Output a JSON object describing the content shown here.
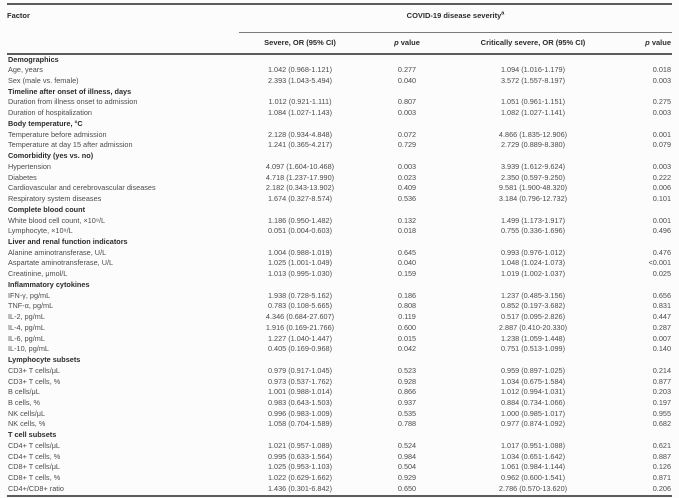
{
  "table": {
    "factor_header": "Factor",
    "span_header": "COVID-19 disease severity",
    "span_header_sup": "a",
    "subheaders": {
      "severe": "Severe, OR (95% CI)",
      "p1": {
        "italic": "p",
        "rest": " value"
      },
      "critical": "Critically severe, OR (95% CI)",
      "p2": {
        "italic": "p",
        "rest": " value"
      }
    },
    "rows": [
      {
        "type": "section",
        "label": "Demographics"
      },
      {
        "type": "data",
        "label": "Age, years",
        "severe_or": "1.042 (0.968-1.121)",
        "severe_p": "0.277",
        "critical_or": "1.094 (1.016-1.179)",
        "critical_p": "0.018"
      },
      {
        "type": "data",
        "label": "Sex (male vs. female)",
        "severe_or": "2.393 (1.043-5.494)",
        "severe_p": "0.040",
        "critical_or": "3.572 (1.557-8.197)",
        "critical_p": "0.003"
      },
      {
        "type": "section",
        "label": "Timeline after onset of illness, days"
      },
      {
        "type": "data",
        "label": "Duration from illness onset to admission",
        "severe_or": "1.012 (0.921-1.111)",
        "severe_p": "0.807",
        "critical_or": "1.051 (0.961-1.151)",
        "critical_p": "0.275"
      },
      {
        "type": "data",
        "label": "Duration of hospitalization",
        "severe_or": "1.084 (1.027-1.143)",
        "severe_p": "0.003",
        "critical_or": "1.082 (1.027-1.141)",
        "critical_p": "0.003"
      },
      {
        "type": "section",
        "label": "Body temperature, °C"
      },
      {
        "type": "data",
        "label": "Temperature before admission",
        "severe_or": "2.128 (0.934-4.848)",
        "severe_p": "0.072",
        "critical_or": "4.866 (1.835-12.906)",
        "critical_p": "0.001"
      },
      {
        "type": "data",
        "label": "Temperature at day 15 after admission",
        "severe_or": "1.241 (0.365-4.217)",
        "severe_p": "0.729",
        "critical_or": "2.729 (0.889-8.380)",
        "critical_p": "0.079"
      },
      {
        "type": "section",
        "label": "Comorbidity (yes vs. no)"
      },
      {
        "type": "data",
        "label": "Hypertension",
        "severe_or": "4.097 (1.604-10.468)",
        "severe_p": "0.003",
        "critical_or": "3.939 (1.612-9.624)",
        "critical_p": "0.003"
      },
      {
        "type": "data",
        "label": "Diabetes",
        "severe_or": "4.718 (1.237-17.990)",
        "severe_p": "0.023",
        "critical_or": "2.350 (0.597-9.250)",
        "critical_p": "0.222"
      },
      {
        "type": "data",
        "label": "Cardiovascular and cerebrovascular diseases",
        "severe_or": "2.182 (0.343-13.902)",
        "severe_p": "0.409",
        "critical_or": "9.581 (1.900-48.320)",
        "critical_p": "0.006"
      },
      {
        "type": "data",
        "label": "Respiratory system diseases",
        "severe_or": "1.674 (0.327-8.574)",
        "severe_p": "0.536",
        "critical_or": "3.184 (0.796-12.732)",
        "critical_p": "0.101"
      },
      {
        "type": "section",
        "label": "Complete blood count"
      },
      {
        "type": "data",
        "label": "White blood cell count, ×10⁹/L",
        "severe_or": "1.186 (0.950-1.482)",
        "severe_p": "0.132",
        "critical_or": "1.499 (1.173-1.917)",
        "critical_p": "0.001"
      },
      {
        "type": "data",
        "label": "Lymphocyte, ×10⁹/L",
        "severe_or": "0.051 (0.004-0.603)",
        "severe_p": "0.018",
        "critical_or": "0.755 (0.336-1.696)",
        "critical_p": "0.496"
      },
      {
        "type": "section",
        "label": "Liver and renal function indicators"
      },
      {
        "type": "data",
        "label": "Alanine aminotransferase, U/L",
        "severe_or": "1.004 (0.988-1.019)",
        "severe_p": "0.645",
        "critical_or": "0.993 (0.976-1.012)",
        "critical_p": "0.476"
      },
      {
        "type": "data",
        "label": "Aspartate aminotransferase, U/L",
        "severe_or": "1.025 (1.001-1.049)",
        "severe_p": "0.040",
        "critical_or": "1.048 (1.024-1.073)",
        "critical_p": "<0.001"
      },
      {
        "type": "data",
        "label": "Creatinine, μmol/L",
        "severe_or": "1.013 (0.995-1.030)",
        "severe_p": "0.159",
        "critical_or": "1.019 (1.002-1.037)",
        "critical_p": "0.025"
      },
      {
        "type": "section",
        "label": "Inflammatory cytokines"
      },
      {
        "type": "data",
        "label": "IFN-γ, pg/mL",
        "severe_or": "1.938 (0.728-5.162)",
        "severe_p": "0.186",
        "critical_or": "1.237 (0.485-3.156)",
        "critical_p": "0.656"
      },
      {
        "type": "data",
        "label": "TNF-α, pg/mL",
        "severe_or": "0.783 (0.108-5.665)",
        "severe_p": "0.808",
        "critical_or": "0.852 (0.197-3.682)",
        "critical_p": "0.831"
      },
      {
        "type": "data",
        "label": "IL-2, pg/mL",
        "severe_or": "4.346 (0.684-27.607)",
        "severe_p": "0.119",
        "critical_or": "0.517 (0.095-2.826)",
        "critical_p": "0.447"
      },
      {
        "type": "data",
        "label": "IL-4, pg/mL",
        "severe_or": "1.916 (0.169-21.766)",
        "severe_p": "0.600",
        "critical_or": "2.887 (0.410-20.330)",
        "critical_p": "0.287"
      },
      {
        "type": "data",
        "label": "IL-6, pg/mL",
        "severe_or": "1.227 (1.040-1.447)",
        "severe_p": "0.015",
        "critical_or": "1.238 (1.059-1.448)",
        "critical_p": "0.007"
      },
      {
        "type": "data",
        "label": "IL-10, pg/mL",
        "severe_or": "0.405 (0.169-0.968)",
        "severe_p": "0.042",
        "critical_or": "0.751 (0.513-1.099)",
        "critical_p": "0.140"
      },
      {
        "type": "section",
        "label": "Lymphocyte subsets"
      },
      {
        "type": "data",
        "label": "CD3+ T cells/μL",
        "severe_or": "0.979 (0.917-1.045)",
        "severe_p": "0.523",
        "critical_or": "0.959 (0.897-1.025)",
        "critical_p": "0.214"
      },
      {
        "type": "data",
        "label": "CD3+ T cells, %",
        "severe_or": "0.973 (0.537-1.762)",
        "severe_p": "0.928",
        "critical_or": "1.034 (0.675-1.584)",
        "critical_p": "0.877"
      },
      {
        "type": "data",
        "label": "B cells/μL",
        "severe_or": "1.001 (0.988-1.014)",
        "severe_p": "0.866",
        "critical_or": "1.012 (0.994-1.031)",
        "critical_p": "0.203"
      },
      {
        "type": "data",
        "label": "B cells, %",
        "severe_or": "0.983 (0.643-1.503)",
        "severe_p": "0.937",
        "critical_or": "0.884 (0.734-1.066)",
        "critical_p": "0.197"
      },
      {
        "type": "data",
        "label": "NK cells/μL",
        "severe_or": "0.996 (0.983-1.009)",
        "severe_p": "0.535",
        "critical_or": "1.000 (0.985-1.017)",
        "critical_p": "0.955"
      },
      {
        "type": "data",
        "label": "NK cells, %",
        "severe_or": "1.058 (0.704-1.589)",
        "severe_p": "0.788",
        "critical_or": "0.977 (0.874-1.092)",
        "critical_p": "0.682"
      },
      {
        "type": "section",
        "label": "T cell subsets"
      },
      {
        "type": "data",
        "label": "CD4+ T cells/μL",
        "severe_or": "1.021 (0.957-1.089)",
        "severe_p": "0.524",
        "critical_or": "1.017 (0.951-1.088)",
        "critical_p": "0.621"
      },
      {
        "type": "data",
        "label": "CD4+ T cells, %",
        "severe_or": "0.995 (0.633-1.564)",
        "severe_p": "0.984",
        "critical_or": "1.034 (0.651-1.642)",
        "critical_p": "0.887"
      },
      {
        "type": "data",
        "label": "CD8+ T cells/μL",
        "severe_or": "1.025 (0.953-1.103)",
        "severe_p": "0.504",
        "critical_or": "1.061 (0.984-1.144)",
        "critical_p": "0.126"
      },
      {
        "type": "data",
        "label": "CD8+ T cells, %",
        "severe_or": "1.022 (0.629-1.662)",
        "severe_p": "0.929",
        "critical_or": "0.962 (0.600-1.541)",
        "critical_p": "0.871"
      },
      {
        "type": "data",
        "label": "CD4+/CD8+ ratio",
        "severe_or": "1.436 (0.301-6.842)",
        "severe_p": "0.650",
        "critical_or": "2.786 (0.570-13.620)",
        "critical_p": "0.206"
      }
    ]
  }
}
